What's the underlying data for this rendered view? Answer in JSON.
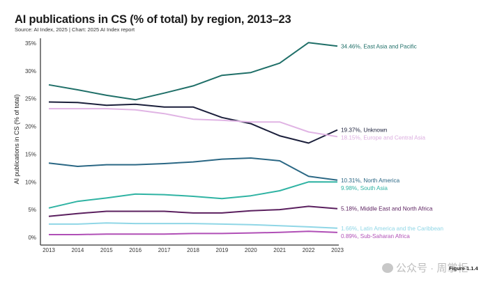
{
  "chart_data": {
    "type": "line",
    "title": "AI publications in CS (% of total) by region, 2013–23",
    "subtitle": "Source: AI Index, 2025 | Chart: 2025 AI Index report",
    "xlabel": "",
    "ylabel": "AI publications in CS (% of total)",
    "x": [
      "2013",
      "2014",
      "2015",
      "2016",
      "2017",
      "2018",
      "2019",
      "2020",
      "2021",
      "2022",
      "2023"
    ],
    "ylim": [
      0,
      35
    ],
    "yticks": [
      0,
      5,
      10,
      15,
      20,
      25,
      30,
      35
    ],
    "ytick_labels": [
      "0%",
      "5%",
      "10%",
      "15%",
      "20%",
      "25%",
      "30%",
      "35%"
    ],
    "grid": false,
    "legend": "end-of-line labels (right)",
    "series": [
      {
        "name": "East Asia and Pacific",
        "color": "#1f6f68",
        "label_color": "#1f6f68",
        "end_label": "34.46%, East Asia and Pacific",
        "values": [
          27.5,
          26.6,
          25.6,
          24.8,
          26.0,
          27.3,
          29.2,
          29.7,
          31.4,
          35.1,
          34.46
        ]
      },
      {
        "name": "Unknown",
        "color": "#1b1f3b",
        "label_color": "#1b1f3b",
        "end_label": "19.37%, Unknown",
        "values": [
          24.4,
          24.3,
          23.8,
          24.0,
          23.5,
          23.5,
          21.6,
          20.5,
          18.3,
          17.0,
          19.37
        ]
      },
      {
        "name": "Europe and Central Asia",
        "color": "#e0b4e4",
        "label_color": "#dcaee0",
        "end_label": "18.15%, Europe and Central Asia",
        "values": [
          23.2,
          23.2,
          23.2,
          23.0,
          22.3,
          21.3,
          21.1,
          20.8,
          20.8,
          19.0,
          18.15
        ]
      },
      {
        "name": "North America",
        "color": "#2a6784",
        "label_color": "#2a6784",
        "end_label": "10.31%, North America",
        "values": [
          13.4,
          12.8,
          13.1,
          13.1,
          13.3,
          13.6,
          14.1,
          14.3,
          13.8,
          11.0,
          10.31
        ]
      },
      {
        "name": "South Asia",
        "color": "#2fb3a3",
        "label_color": "#2fb3a3",
        "end_label": "9.98%, South Asia",
        "values": [
          5.3,
          6.5,
          7.1,
          7.8,
          7.7,
          7.4,
          7.0,
          7.5,
          8.4,
          10.0,
          9.98
        ]
      },
      {
        "name": "Middle East and North Africa",
        "color": "#5a1f5e",
        "label_color": "#5a1f5e",
        "end_label": "5.18%, Middle East and North Africa",
        "values": [
          3.8,
          4.3,
          4.7,
          4.7,
          4.7,
          4.4,
          4.4,
          4.8,
          5.0,
          5.6,
          5.18
        ]
      },
      {
        "name": "Latin America and the Caribbean",
        "color": "#8fd6e6",
        "label_color": "#8fd6e6",
        "end_label": "1.66%, Latin America and the Caribbean",
        "values": [
          2.4,
          2.4,
          2.6,
          2.5,
          2.5,
          2.5,
          2.4,
          2.3,
          2.1,
          1.9,
          1.66
        ]
      },
      {
        "name": "Sub-Saharan Africa",
        "color": "#b04fb6",
        "label_color": "#b04fb6",
        "end_label": "0.89%, Sub-Saharan Africa",
        "values": [
          0.5,
          0.5,
          0.6,
          0.6,
          0.6,
          0.7,
          0.7,
          0.8,
          0.9,
          1.1,
          0.89
        ]
      }
    ]
  },
  "footer": {
    "watermark": "公众号 · 周掌柜",
    "figure_label": "Figure 1.1.4"
  }
}
